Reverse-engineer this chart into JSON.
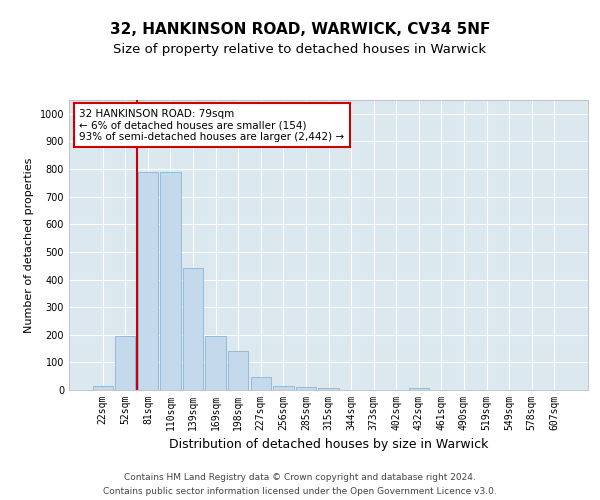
{
  "title1": "32, HANKINSON ROAD, WARWICK, CV34 5NF",
  "title2": "Size of property relative to detached houses in Warwick",
  "xlabel": "Distribution of detached houses by size in Warwick",
  "ylabel": "Number of detached properties",
  "footnote1": "Contains HM Land Registry data © Crown copyright and database right 2024.",
  "footnote2": "Contains public sector information licensed under the Open Government Licence v3.0.",
  "categories": [
    "22sqm",
    "52sqm",
    "81sqm",
    "110sqm",
    "139sqm",
    "169sqm",
    "198sqm",
    "227sqm",
    "256sqm",
    "285sqm",
    "315sqm",
    "344sqm",
    "373sqm",
    "402sqm",
    "432sqm",
    "461sqm",
    "490sqm",
    "519sqm",
    "549sqm",
    "578sqm",
    "607sqm"
  ],
  "values": [
    15,
    195,
    790,
    790,
    442,
    195,
    143,
    48,
    15,
    10,
    8,
    0,
    0,
    0,
    8,
    0,
    0,
    0,
    0,
    0,
    0
  ],
  "bar_color": "#c5d9ed",
  "bar_edge_color": "#8ab4d4",
  "annotation_text": "32 HANKINSON ROAD: 79sqm\n← 6% of detached houses are smaller (154)\n93% of semi-detached houses are larger (2,442) →",
  "annotation_box_color": "#ffffff",
  "annotation_box_edge_color": "#cc0000",
  "line_color": "#cc0000",
  "ylim": [
    0,
    1050
  ],
  "bg_color": "#dce8f0",
  "grid_color": "#ffffff",
  "title1_fontsize": 11,
  "title2_fontsize": 9.5,
  "tick_fontsize": 7,
  "ylabel_fontsize": 8,
  "xlabel_fontsize": 9,
  "annotation_fontsize": 7.5,
  "footnote_fontsize": 6.5
}
